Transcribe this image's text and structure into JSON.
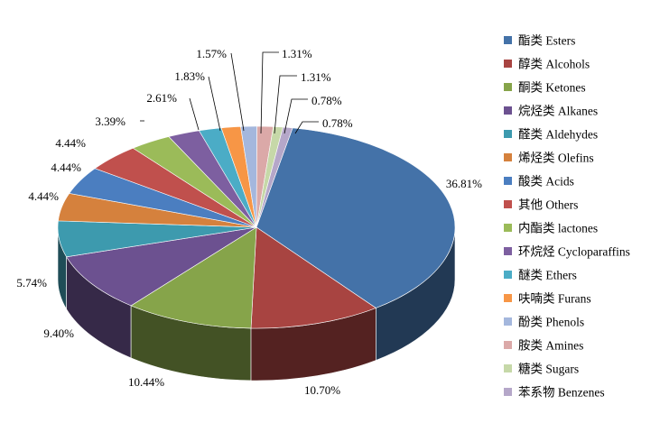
{
  "chart_data": {
    "type": "pie",
    "style": "3d",
    "legend_position": "right",
    "categories": [
      "酯类 Esters",
      "醇类 Alcohols",
      "酮类 Ketones",
      "烷烃类 Alkanes",
      "醛类 Aldehydes",
      "烯烃类 Olefins",
      "酸类 Acids",
      "其他 Others",
      "内酯类 lactones",
      "环烷烃 Cycloparaffins",
      "醚类 Ethers",
      "呋喃类 Furans",
      "酚类 Phenols",
      "胺类 Amines",
      "糖类 Sugars",
      "苯系物 Benzenes"
    ],
    "values": [
      36.81,
      10.7,
      10.44,
      9.4,
      5.74,
      4.44,
      4.44,
      4.44,
      3.39,
      2.61,
      1.83,
      1.57,
      1.31,
      1.31,
      0.78,
      0.78
    ],
    "labels": [
      "36.81%",
      "10.70%",
      "10.44%",
      "9.40%",
      "5.74%",
      "4.44%",
      "4.44%",
      "4.44%",
      "3.39%",
      "2.61%",
      "1.83%",
      "1.57%",
      "1.31%",
      "1.31%",
      "0.78%",
      "0.78%"
    ],
    "colors": [
      "#4472a8",
      "#a84441",
      "#86a44a",
      "#6c5190",
      "#3d9aae",
      "#d5813d",
      "#4b7ec0",
      "#c0504d",
      "#9bbb59",
      "#7d5fa0",
      "#4bacc6",
      "#f79646",
      "#a4b7dd",
      "#dba9a8",
      "#c6d8a8",
      "#b5a7c9"
    ]
  }
}
